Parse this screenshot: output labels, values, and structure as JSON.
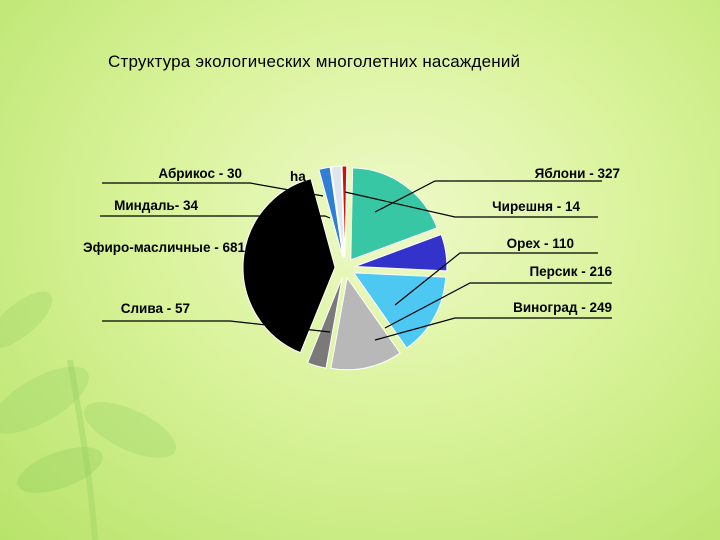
{
  "title": "Структура экологических многолетних насаждений",
  "chart_data": {
    "type": "pie",
    "exploded": true,
    "unit_label": "ha",
    "slices": [
      {
        "label": "Яблони - 327",
        "name": "Яблони",
        "value": 327,
        "color": "#38c7a5"
      },
      {
        "label": "Орех - 110",
        "name": "Орех",
        "value": 110,
        "color": "#3333cc"
      },
      {
        "label": "Виноград - 249",
        "name": "Виноград",
        "value": 249,
        "color": "#4dc8f2"
      },
      {
        "label": "Персик - 216",
        "name": "Персик",
        "value": 216,
        "color": "#b8b8b8"
      },
      {
        "label": "Слива - 57",
        "name": "Слива",
        "value": 57,
        "color": "#7a7a7a"
      },
      {
        "label": "Эфиро-масличные - 681",
        "name": "Эфиро-масличные",
        "value": 681,
        "color": "#000000"
      },
      {
        "label": "Миндаль- 34",
        "name": "Миндаль",
        "value": 34,
        "color": "#2f7fd6"
      },
      {
        "label": "Абрикос - 30",
        "name": "Абрикос",
        "value": 30,
        "color": "#dde6ee"
      },
      {
        "label": "Чирешня - 14",
        "name": "Чирешня",
        "value": 14,
        "color": "#cc1111"
      }
    ]
  }
}
